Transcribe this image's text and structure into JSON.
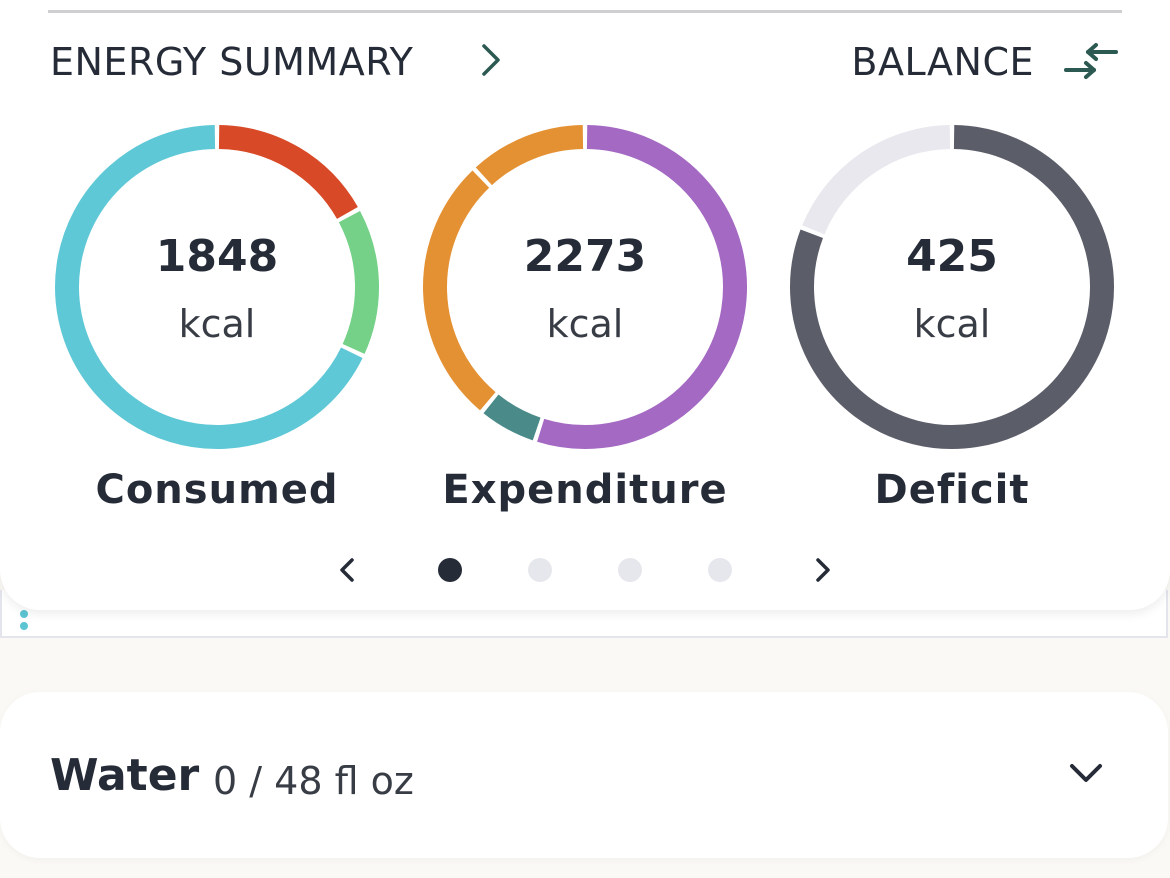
{
  "energy_summary": {
    "title": "ENERGY SUMMARY",
    "balance_label": "BALANCE",
    "header_chevron_icon": "chevron-right-icon",
    "balance_icon": "swap-arrows-icon",
    "rings": [
      {
        "value": "1848",
        "unit": "kcal",
        "label": "Consumed",
        "segments": [
          {
            "color": "#d84a27",
            "fraction": 0.17
          },
          {
            "color": "#74d187",
            "fraction": 0.15
          },
          {
            "color": "#5ec8d6",
            "fraction": 0.68
          }
        ]
      },
      {
        "value": "2273",
        "unit": "kcal",
        "label": "Expenditure",
        "segments": [
          {
            "color": "#a469c2",
            "fraction": 0.55
          },
          {
            "color": "#4a8b89",
            "fraction": 0.06
          },
          {
            "color": "#e49133",
            "fraction": 0.27
          },
          {
            "color": "#e49133",
            "fraction": 0.12
          }
        ]
      },
      {
        "value": "425",
        "unit": "kcal",
        "label": "Deficit",
        "segments": [
          {
            "color": "#5b5d69",
            "fraction": 0.81
          },
          {
            "color": "#e8e8ee",
            "fraction": 0.19
          }
        ]
      }
    ],
    "pager": {
      "pages": 4,
      "active_page": 0,
      "prev_icon": "chevron-left-icon",
      "next_icon": "chevron-right-icon"
    }
  },
  "water": {
    "title": "Water",
    "amount": "0 / 48 fl oz",
    "expand_icon": "chevron-down-icon"
  },
  "colors": {
    "text": "#252b37",
    "accent_teal": "#2c5a52",
    "inactive_dot": "#e6e7ec"
  }
}
